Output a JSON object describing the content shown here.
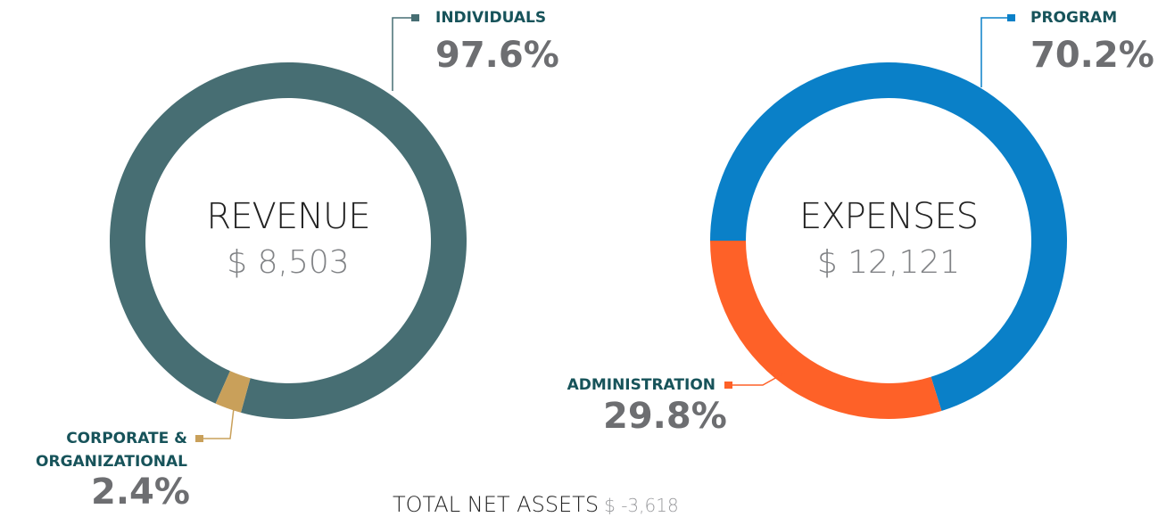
{
  "chart_data": [
    {
      "type": "pie",
      "title": "REVENUE",
      "subtitle": "$ 8,503",
      "categories": [
        "INDIVIDUALS",
        "CORPORATE & ORGANIZATIONAL"
      ],
      "values": [
        97.6,
        2.4
      ],
      "value_labels": [
        "97.6%",
        "2.4%"
      ],
      "colors": [
        "#476e73",
        "#c9a05a"
      ]
    },
    {
      "type": "pie",
      "title": "EXPENSES",
      "subtitle": "$ 12,121",
      "categories": [
        "PROGRAM",
        "ADMINISTRATION"
      ],
      "values": [
        70.2,
        29.8
      ],
      "value_labels": [
        "70.2%",
        "29.8%"
      ],
      "colors": [
        "#0a80c8",
        "#fe6128"
      ]
    }
  ],
  "footer": {
    "label": "TOTAL NET ASSETS",
    "value": "$ -3,618"
  }
}
